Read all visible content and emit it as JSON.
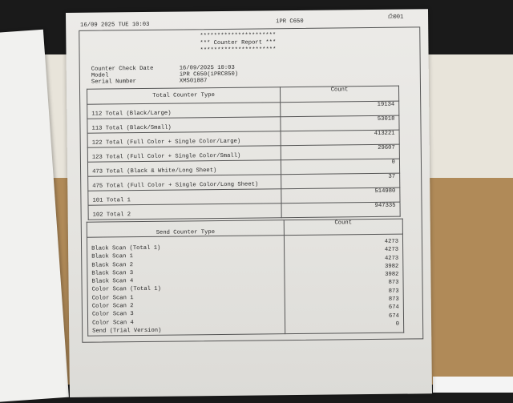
{
  "header": {
    "datetime": "16/09 2025 TUE 10:03",
    "model": "iPR C650",
    "page": "001",
    "page_icon": "printer-icon"
  },
  "title": {
    "stars": "**********************",
    "text": "*** Counter Report ***"
  },
  "info": [
    {
      "label": "Counter Check Date",
      "value": "16/09/2025 10:03"
    },
    {
      "label": "Model",
      "value": "iPR C650(iPRC850)"
    },
    {
      "label": "Serial Number",
      "value": "XMS01887"
    }
  ],
  "total_table": {
    "headers": [
      "Total Counter Type",
      "Count"
    ],
    "rows": [
      {
        "type": "112 Total (Black/Large)",
        "count": "19134"
      },
      {
        "type": "113 Total (Black/Small)",
        "count": "53018"
      },
      {
        "type": "122 Total (Full Color + Single Color/Large)",
        "count": "413221"
      },
      {
        "type": "123 Total (Full Color + Single Color/Small)",
        "count": "29607"
      },
      {
        "type": "473 Total (Black & White/Long Sheet)",
        "count": "0"
      },
      {
        "type": "475 Total (Full Color + Single Color/Long Sheet)",
        "count": "37"
      },
      {
        "type": "101 Total 1",
        "count": "514980"
      },
      {
        "type": "102 Total 2",
        "count": "947335"
      }
    ]
  },
  "send_table": {
    "headers": [
      "Send Counter Type",
      "Count"
    ],
    "types": [
      "Black Scan (Total 1)",
      "Black Scan 1",
      "Black Scan 2",
      "Black Scan 3",
      "Black Scan 4",
      "Color Scan (Total 1)",
      "Color Scan 1",
      "Color Scan 2",
      "Color Scan 3",
      "Color Scan 4",
      "Send (Trial Version)"
    ],
    "counts": [
      "4273",
      "4273",
      "4273",
      "3982",
      "3982",
      "873",
      "873",
      "873",
      "674",
      "674",
      "0"
    ]
  }
}
